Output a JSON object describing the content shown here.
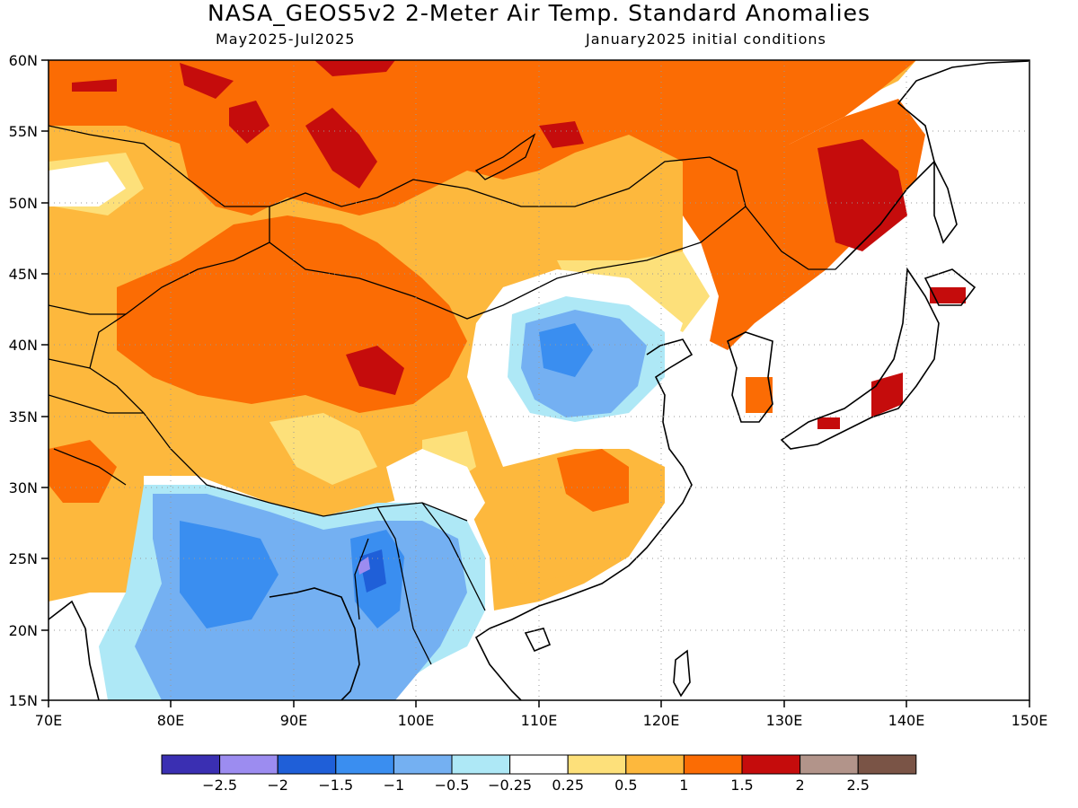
{
  "title": "NASA_GEOS5v2 2-Meter Air Temp. Standard Anomalies",
  "subtitle_left": "May2025-Jul2025",
  "subtitle_right": "January2025 initial conditions",
  "lat_labels": [
    "60N",
    "55N",
    "50N",
    "45N",
    "40N",
    "35N",
    "30N",
    "25N",
    "20N",
    "15N"
  ],
  "lon_labels": [
    "70E",
    "80E",
    "90E",
    "100E",
    "110E",
    "120E",
    "130E",
    "140E",
    "150E"
  ],
  "colorbar": {
    "labels": [
      "-2.5",
      "-2",
      "-1.5",
      "-1",
      "-0.5",
      "-0.25",
      "0.25",
      "0.5",
      "1",
      "1.5",
      "2",
      "2.5"
    ],
    "colors": [
      "#3a2fb2",
      "#9c8cf0",
      "#1f5fd8",
      "#3a8ef0",
      "#74b0f2",
      "#aee8f6",
      "#ffffff",
      "#fde07a",
      "#fdb83d",
      "#fb6c04",
      "#c50c0c",
      "#b2948a",
      "#7a5446"
    ]
  }
}
